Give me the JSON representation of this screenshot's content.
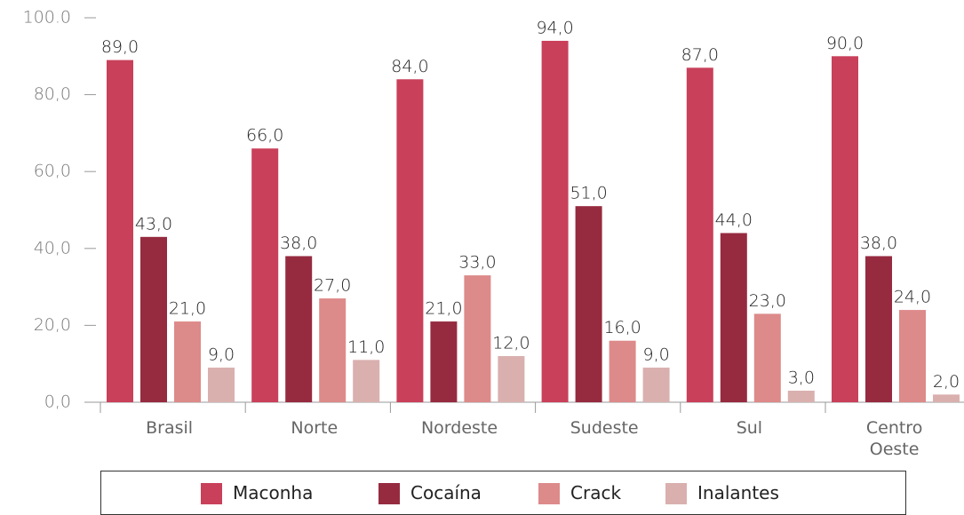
{
  "chart_data": {
    "type": "bar",
    "categories": [
      "Brasil",
      "Norte",
      "Nordeste",
      "Sudeste",
      "Sul",
      "Centro Oeste"
    ],
    "series": [
      {
        "name": "Maconha",
        "color": "#c9405a",
        "values": [
          89,
          66,
          84,
          94,
          87,
          90
        ],
        "value_labels": [
          "89,0",
          "66,0",
          "84,0",
          "94,0",
          "87,0",
          "90,0"
        ]
      },
      {
        "name": "Cocaína",
        "color": "#962b40",
        "values": [
          43,
          38,
          21,
          51,
          44,
          38
        ],
        "value_labels": [
          "43,0",
          "38,0",
          "21,0",
          "51,0",
          "44,0",
          "38,0"
        ]
      },
      {
        "name": "Crack",
        "color": "#dd8a8a",
        "values": [
          21,
          27,
          33,
          16,
          23,
          24
        ],
        "value_labels": [
          "21,0",
          "27,0",
          "33,0",
          "16,0",
          "23,0",
          "24,0"
        ]
      },
      {
        "name": "Inalantes",
        "color": "#d9b0ae",
        "values": [
          9,
          11,
          12,
          9,
          3,
          2
        ],
        "value_labels": [
          "9,0",
          "11,0",
          "12,0",
          "9,0",
          "3,0",
          "2,0"
        ]
      }
    ],
    "ylim": [
      0,
      100
    ],
    "yticks": [
      {
        "value": 0,
        "label": "0,0"
      },
      {
        "value": 20,
        "label": "20,0"
      },
      {
        "value": 40,
        "label": "40,0"
      },
      {
        "value": 60,
        "label": "60,0"
      },
      {
        "value": 80,
        "label": "80,0"
      },
      {
        "value": 100,
        "label": "100.0"
      }
    ],
    "legend": "bottom"
  }
}
